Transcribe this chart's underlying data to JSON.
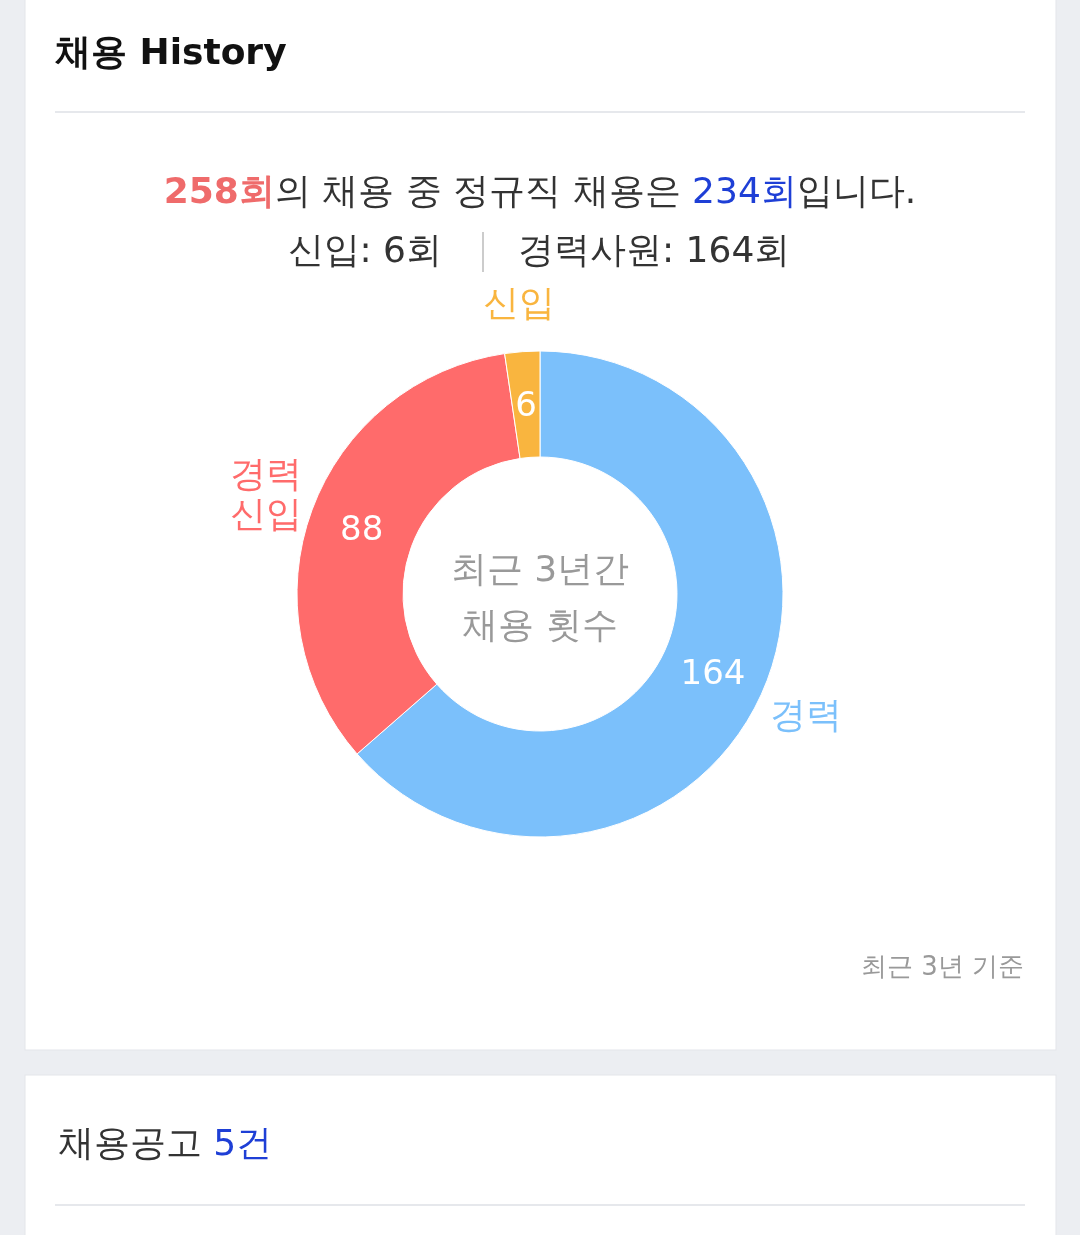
{
  "chart_data": {
    "type": "donut",
    "title": "채용 History",
    "subtitle": "258회의 채용 중 정규직 채용은 234회입니다.",
    "categories": [
      "경력",
      "경력 신입",
      "신입"
    ],
    "values": [
      164,
      88,
      6
    ],
    "colors": [
      "#7bc0fb",
      "#ff6b6b",
      "#f9b53f"
    ],
    "data_labels": true,
    "annotations": [
      "신입: 6회",
      "경력사원: 164회",
      "최근 3년간",
      "채용 횟수",
      "최근 3년 기준",
      "채용공고 5건"
    ]
  }
}
